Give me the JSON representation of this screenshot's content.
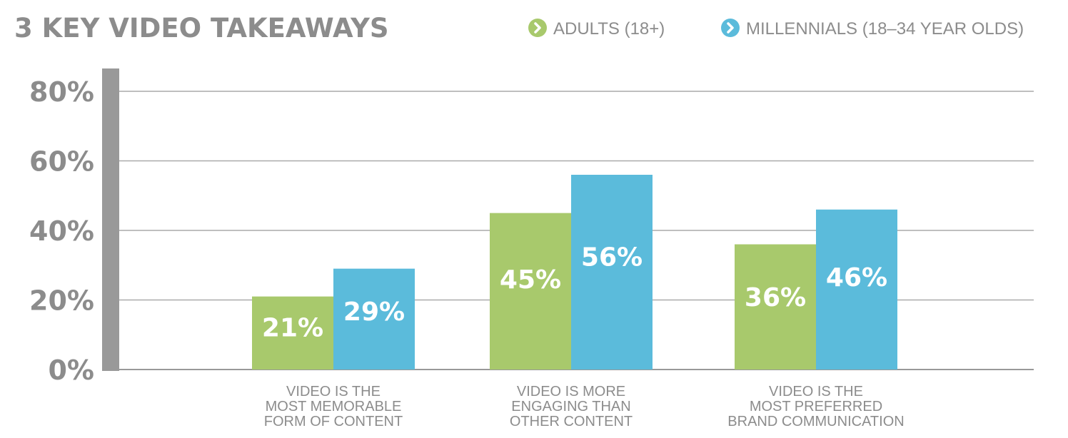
{
  "colors": {
    "adults": "#a8c96c",
    "millennials": "#5bbbdb",
    "text": "#8c8c8c",
    "axis": "#999999",
    "grid": "#aaaaaa"
  },
  "legend": [
    {
      "label": "ADULTS (18+)",
      "icon": "chevron-right-icon"
    },
    {
      "label": "MILLENNIALS (18–34 YEAR OLDS)",
      "icon": "chevron-right-icon"
    }
  ],
  "chart_data": {
    "type": "bar",
    "title": "3 KEY VIDEO TAKEAWAYS",
    "categories": [
      [
        "VIDEO IS THE",
        "MOST MEMORABLE",
        "FORM OF CONTENT"
      ],
      [
        "VIDEO IS MORE",
        "ENGAGING THAN",
        "OTHER CONTENT"
      ],
      [
        "VIDEO IS THE",
        "MOST PREFERRED",
        "BRAND COMMUNICATION"
      ]
    ],
    "series": [
      {
        "name": "ADULTS (18+)",
        "values": [
          21,
          45,
          36
        ],
        "labels": [
          "21%",
          "45%",
          "36%"
        ]
      },
      {
        "name": "MILLENNIALS (18–34 YEAR OLDS)",
        "values": [
          29,
          56,
          46
        ],
        "labels": [
          "29%",
          "56%",
          "46%"
        ]
      }
    ],
    "yticks": [
      "0%",
      "20%",
      "40%",
      "60%",
      "80%"
    ],
    "ylim": [
      0,
      80
    ],
    "grid": true,
    "legend_position": "top-right"
  }
}
